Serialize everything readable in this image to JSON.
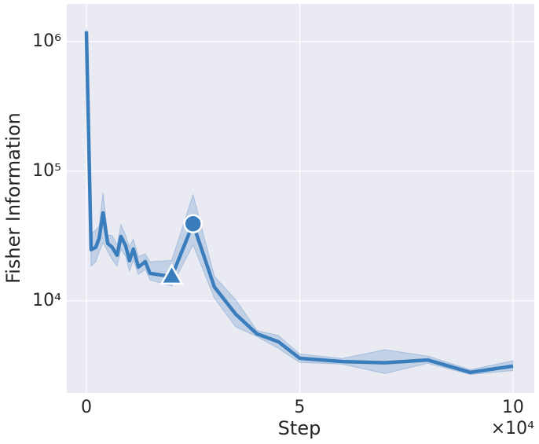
{
  "chart_data": {
    "type": "line",
    "x_label": "Step",
    "y_label": "Fisher Information",
    "x_offset_label": "×10⁴",
    "color": "#3a7dbd",
    "band_color": "#3a7dbd",
    "x": [
      0,
      1100,
      2200,
      3000,
      3900,
      5000,
      6000,
      7200,
      8100,
      9200,
      10100,
      11000,
      12200,
      13800,
      14900,
      20000,
      25000,
      30000,
      35000,
      40000,
      45000,
      50000,
      60000,
      70000,
      80000,
      90000,
      100000
    ],
    "values": [
      1200000,
      24800,
      25900,
      30500,
      47700,
      27700,
      26000,
      22500,
      31400,
      26600,
      20400,
      25100,
      18200,
      20100,
      16300,
      15400,
      39300,
      12800,
      7900,
      5560,
      4840,
      3610,
      3400,
      3330,
      3500,
      2810,
      3140
    ],
    "lower": [
      1150000,
      18500,
      20000,
      24000,
      28000,
      24000,
      21000,
      18500,
      25000,
      22000,
      17000,
      20500,
      16000,
      17500,
      14500,
      13000,
      27000,
      10500,
      6300,
      5300,
      4300,
      3350,
      3250,
      2750,
      3300,
      2700,
      2900
    ],
    "upper": [
      1250000,
      33000,
      35000,
      38000,
      68000,
      32000,
      32000,
      27000,
      39000,
      32000,
      26000,
      30000,
      22000,
      23000,
      20000,
      20500,
      66000,
      15500,
      10200,
      5900,
      5400,
      3900,
      3600,
      4200,
      3750,
      2950,
      3450
    ],
    "markers": [
      {
        "shape": "triangle",
        "x": 20000,
        "y": 15400
      },
      {
        "shape": "circle",
        "x": 25000,
        "y": 39300
      }
    ],
    "xlim": [
      -4600,
      105000
    ],
    "ylim": [
      1950,
      1950000
    ],
    "log_y": true,
    "grid": true,
    "xticks": [
      {
        "value": 0,
        "label": "0"
      },
      {
        "value": 50000,
        "label": "5"
      },
      {
        "value": 100000,
        "label": "10"
      }
    ],
    "yticks": [
      {
        "value": 10000,
        "label": "10⁴"
      },
      {
        "value": 100000,
        "label": "10⁵"
      },
      {
        "value": 1000000,
        "label": "10⁶"
      }
    ]
  }
}
